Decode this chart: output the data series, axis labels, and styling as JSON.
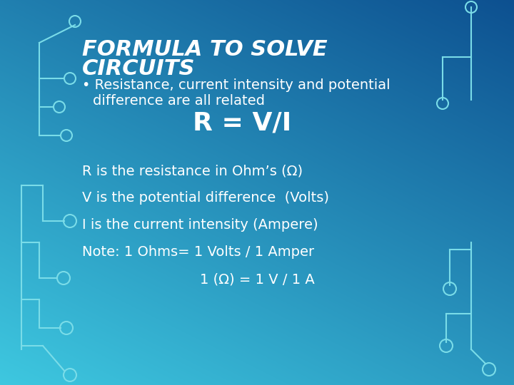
{
  "title_line1": "FORMULA TO SOLVE",
  "title_line2": "CIRCUITS",
  "bullet_text_line1": "• Resistance, current intensity and potential",
  "bullet_text_line2": "  difference are all related",
  "formula": "R = V/I",
  "line1": "R is the resistance in Ohm’s (Ω)",
  "line2": "V is the potential difference  (Volts)",
  "line3": "I is the current intensity (Ampere)",
  "line4": "Note: 1 Ohms= 1 Volts / 1 Amper",
  "line5": "1 (Ω) = 1 V / 1 A",
  "bg_color_tl": "#3ec8e0",
  "bg_color_tr": "#2ab0cc",
  "bg_color_bl": "#1878b8",
  "bg_color_br": "#0d5090",
  "text_color": "#ffffff",
  "circuit_color": "#7adce8",
  "title_fontsize": 22,
  "bullet_fontsize": 14,
  "formula_fontsize": 26,
  "body_fontsize": 14
}
